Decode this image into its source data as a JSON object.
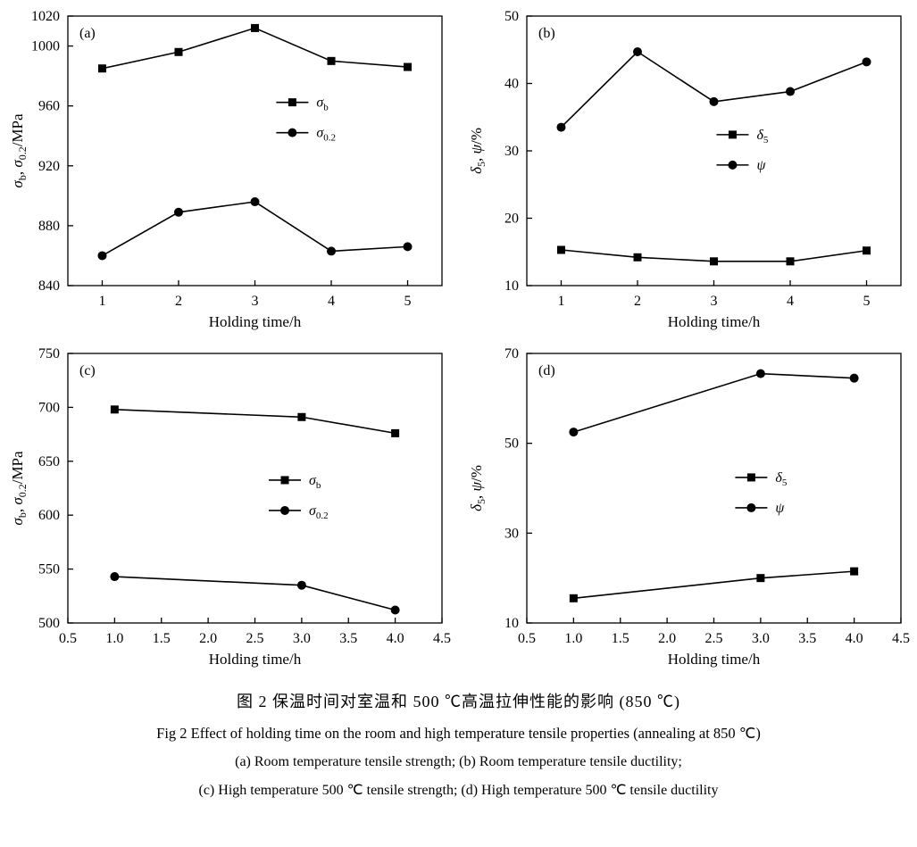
{
  "figure": {
    "caption_zh": "图 2  保温时间对室温和 500 ℃高温拉伸性能的影响 (850 ℃)",
    "caption_en": "Fig 2   Effect of holding time on the room and high temperature tensile properties (annealing at 850 ℃)",
    "caption_sub1": "(a) Room temperature tensile strength;  (b) Room temperature tensile ductility;",
    "caption_sub2": "(c) High temperature 500 ℃ tensile strength;  (d) High temperature 500 ℃ tensile ductility"
  },
  "colors": {
    "line": "#000000",
    "background": "#ffffff"
  },
  "chart_data": [
    {
      "id": "a",
      "type": "line",
      "panel_label": "(a)",
      "xlabel": "Holding time/h",
      "ylabel": "σ~b~, σ~0.2~/MPa",
      "xlim": [
        0.55,
        5.45
      ],
      "ylim": [
        840,
        1020
      ],
      "xticks": [
        1,
        2,
        3,
        4,
        5
      ],
      "xtick_labels": [
        "1",
        "2",
        "3",
        "4",
        "5"
      ],
      "yticks": [
        840,
        880,
        920,
        960,
        1000,
        1020
      ],
      "ytick_labels": [
        "840",
        "880",
        "920",
        "960",
        "1000",
        "1020"
      ],
      "legend": {
        "x": 0.6,
        "y": 0.32
      },
      "series": [
        {
          "name": "σ~b~",
          "marker": "square",
          "x": [
            1,
            2,
            3,
            4,
            5
          ],
          "y": [
            985,
            996,
            1012,
            990,
            986
          ]
        },
        {
          "name": "σ~0.2~",
          "marker": "circle",
          "x": [
            1,
            2,
            3,
            4,
            5
          ],
          "y": [
            860,
            889,
            896,
            863,
            866
          ]
        }
      ]
    },
    {
      "id": "b",
      "type": "line",
      "panel_label": "(b)",
      "xlabel": "Holding time/h",
      "ylabel": "δ~5~, ψ/%",
      "xlim": [
        0.55,
        5.45
      ],
      "ylim": [
        10,
        50
      ],
      "xticks": [
        1,
        2,
        3,
        4,
        5
      ],
      "xtick_labels": [
        "1",
        "2",
        "3",
        "4",
        "5"
      ],
      "yticks": [
        10,
        20,
        30,
        40,
        50
      ],
      "ytick_labels": [
        "10",
        "20",
        "30",
        "40",
        "50"
      ],
      "legend": {
        "x": 0.55,
        "y": 0.44
      },
      "series": [
        {
          "name": "δ~5~",
          "marker": "square",
          "x": [
            1,
            2,
            3,
            4,
            5
          ],
          "y": [
            15.3,
            14.2,
            13.6,
            13.6,
            15.2
          ]
        },
        {
          "name": "ψ",
          "marker": "circle",
          "x": [
            1,
            2,
            3,
            4,
            5
          ],
          "y": [
            33.5,
            44.7,
            37.3,
            38.8,
            43.2
          ]
        }
      ]
    },
    {
      "id": "c",
      "type": "line",
      "panel_label": "(c)",
      "xlabel": "Holding time/h",
      "ylabel": "σ~b~, σ~0.2~/MPa",
      "xlim": [
        0.5,
        4.5
      ],
      "ylim": [
        500,
        750
      ],
      "xticks": [
        0.5,
        1.0,
        1.5,
        2.0,
        2.5,
        3.0,
        3.5,
        4.0,
        4.5
      ],
      "xtick_labels": [
        "0.5",
        "1.0",
        "1.5",
        "2.0",
        "2.5",
        "3.0",
        "3.5",
        "4.0",
        "4.5"
      ],
      "yticks": [
        500,
        550,
        600,
        650,
        700,
        750
      ],
      "ytick_labels": [
        "500",
        "550",
        "600",
        "650",
        "700",
        "750"
      ],
      "legend": {
        "x": 0.58,
        "y": 0.47
      },
      "series": [
        {
          "name": "σ~b~",
          "marker": "square",
          "x": [
            1.0,
            3.0,
            4.0
          ],
          "y": [
            698,
            691,
            676
          ]
        },
        {
          "name": "σ~0.2~",
          "marker": "circle",
          "x": [
            1.0,
            3.0,
            4.0
          ],
          "y": [
            543,
            535,
            512
          ]
        }
      ]
    },
    {
      "id": "d",
      "type": "line",
      "panel_label": "(d)",
      "xlabel": "Holding time/h",
      "ylabel": "δ~5~, ψ/%",
      "xlim": [
        0.5,
        4.5
      ],
      "ylim": [
        10,
        70
      ],
      "xticks": [
        0.5,
        1.0,
        1.5,
        2.0,
        2.5,
        3.0,
        3.5,
        4.0,
        4.5
      ],
      "xtick_labels": [
        "0.5",
        "1.0",
        "1.5",
        "2.0",
        "2.5",
        "3.0",
        "3.5",
        "4.0",
        "4.5"
      ],
      "yticks": [
        10,
        30,
        50,
        70
      ],
      "ytick_labels": [
        "10",
        "30",
        "50",
        "70"
      ],
      "legend": {
        "x": 0.6,
        "y": 0.46
      },
      "series": [
        {
          "name": "δ~5~",
          "marker": "square",
          "x": [
            1.0,
            3.0,
            4.0
          ],
          "y": [
            15.5,
            20.0,
            21.5
          ]
        },
        {
          "name": "ψ",
          "marker": "circle",
          "x": [
            1.0,
            3.0,
            4.0
          ],
          "y": [
            52.5,
            65.5,
            64.5
          ]
        }
      ]
    }
  ]
}
